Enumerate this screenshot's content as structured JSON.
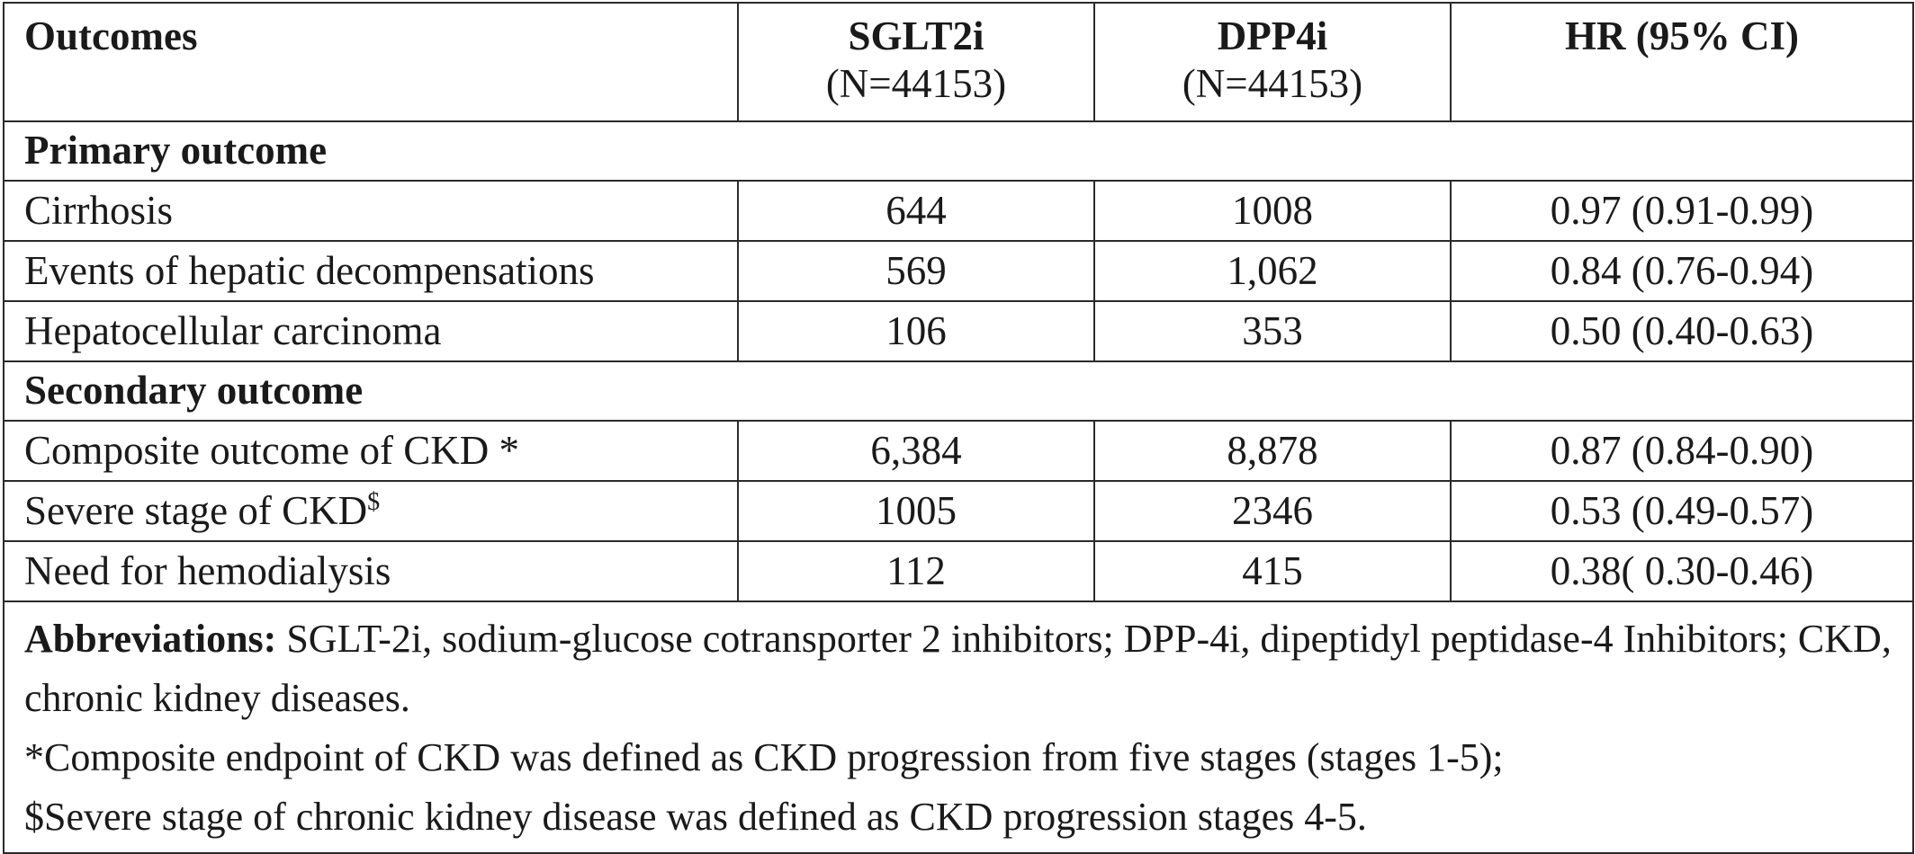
{
  "header": {
    "outcomes": "Outcomes",
    "sglt2i": "SGLT2i",
    "sglt2i_n": "(N=44153)",
    "dpp4i": "DPP4i",
    "dpp4i_n": "(N=44153)",
    "hr": "HR (95% CI)"
  },
  "sections": [
    {
      "title": "Primary outcome",
      "rows": [
        {
          "outcome": "Cirrhosis",
          "sglt2i": "644",
          "dpp4i": "1008",
          "hr": "0.97 (0.91-0.99)"
        },
        {
          "outcome": "Events of hepatic decompensations",
          "sglt2i": "569",
          "dpp4i": "1,062",
          "hr": "0.84 (0.76-0.94)"
        },
        {
          "outcome": "Hepatocellular carcinoma",
          "sglt2i": "106",
          "dpp4i": "353",
          "hr": "0.50 (0.40-0.63)"
        }
      ]
    },
    {
      "title": "Secondary outcome",
      "rows": [
        {
          "outcome": "Composite outcome of CKD *",
          "sglt2i": "6,384",
          "dpp4i": "8,878",
          "hr": "0.87 (0.84-0.90)"
        },
        {
          "outcome": "Severe stage of CKD",
          "outcome_sup": "$",
          "sglt2i": "1005",
          "dpp4i": "2346",
          "hr": "0.53 (0.49-0.57)"
        },
        {
          "outcome": "Need for hemodialysis",
          "sglt2i": "112",
          "dpp4i": "415",
          "hr": "0.38( 0.30-0.46)"
        }
      ]
    }
  ],
  "footnote": {
    "abbrev_label": "Abbreviations:",
    "abbrev_text": "  SGLT-2i, sodium-glucose cotransporter 2 inhibitors; DPP-4i,  dipeptidyl peptidase-4 Inhibitors; CKD, chronic kidney diseases.",
    "note_1": "*Composite endpoint of CKD was defined as CKD progression from five stages (stages 1-5);",
    "note_2": "$Severe stage of chronic kidney disease was defined as CKD progression stages 4-5."
  }
}
